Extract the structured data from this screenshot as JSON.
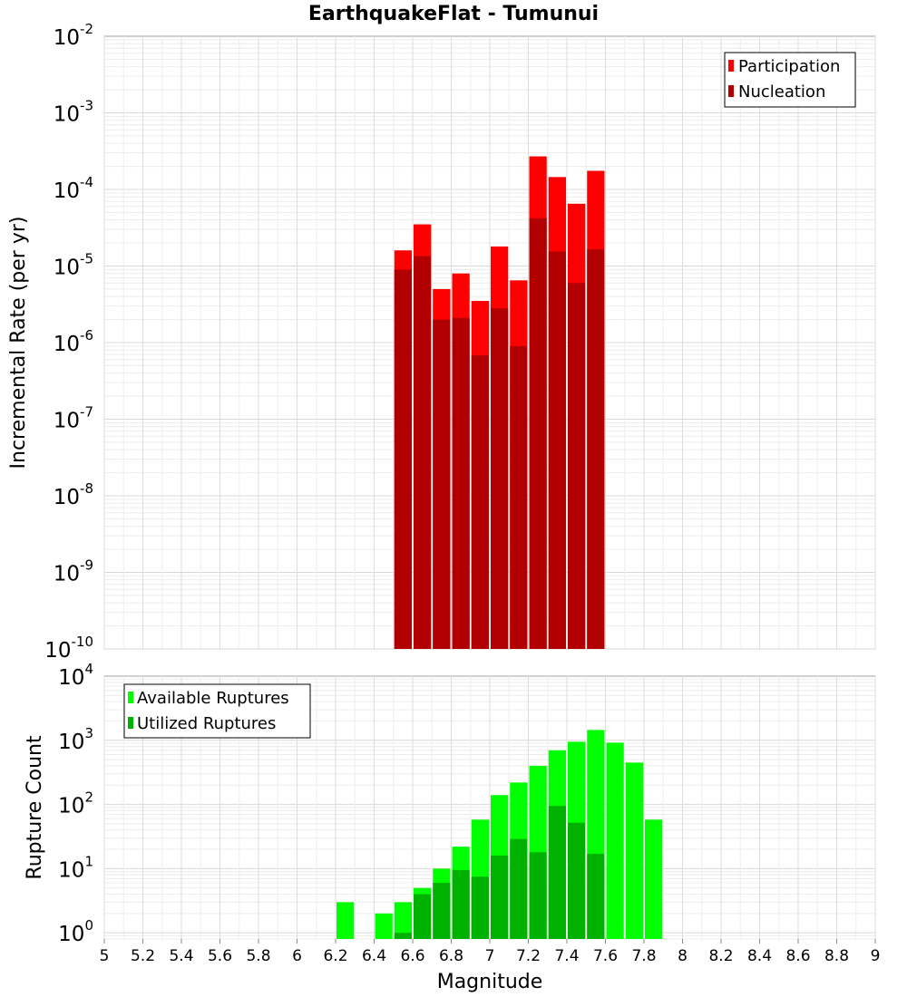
{
  "chart_data": [
    {
      "type": "bar",
      "title": "EarthquakeFlat - Tumunui",
      "xlabel": "",
      "ylabel": "Incremental Rate (per yr)",
      "y_scale": "log",
      "ylim": [
        1e-10,
        0.01
      ],
      "xlim": [
        5,
        9
      ],
      "y_ticks": [
        {
          "base": "10",
          "exp": "-2"
        },
        {
          "base": "10",
          "exp": "-3"
        },
        {
          "base": "10",
          "exp": "-4"
        },
        {
          "base": "10",
          "exp": "-5"
        },
        {
          "base": "10",
          "exp": "-6"
        },
        {
          "base": "10",
          "exp": "-7"
        },
        {
          "base": "10",
          "exp": "-8"
        },
        {
          "base": "10",
          "exp": "-9"
        },
        {
          "base": "10",
          "exp": "-10"
        }
      ],
      "legend_position": "top-right",
      "grid": true,
      "x": [
        6.55,
        6.65,
        6.75,
        6.85,
        6.95,
        7.05,
        7.15,
        7.25,
        7.35,
        7.45,
        7.55
      ],
      "series": [
        {
          "name": "Participation",
          "color": "#ff0000",
          "values": [
            1.6e-05,
            3.5e-05,
            5e-06,
            8e-06,
            3.5e-06,
            1.8e-05,
            6.5e-06,
            0.00027,
            0.000145,
            6.5e-05,
            0.000175
          ]
        },
        {
          "name": "Nucleation",
          "color": "#b20000",
          "values": [
            9e-06,
            1.35e-05,
            2e-06,
            2.1e-06,
            6.8e-07,
            2.8e-06,
            9e-07,
            4.2e-05,
            1.55e-05,
            6e-06,
            1.65e-05
          ]
        }
      ]
    },
    {
      "type": "bar",
      "title": "",
      "xlabel": "Magnitude",
      "ylabel": "Rupture Count",
      "y_scale": "log",
      "ylim": [
        0.8,
        10000
      ],
      "xlim": [
        5,
        9
      ],
      "x_tick_labels": [
        "5",
        "5.2",
        "5.4",
        "5.6",
        "5.8",
        "6",
        "6.2",
        "6.4",
        "6.6",
        "6.8",
        "7",
        "7.2",
        "7.4",
        "7.6",
        "7.8",
        "8",
        "8.2",
        "8.4",
        "8.6",
        "8.8",
        "9"
      ],
      "y_ticks": [
        {
          "base": "10",
          "exp": "4"
        },
        {
          "base": "10",
          "exp": "3"
        },
        {
          "base": "10",
          "exp": "2"
        },
        {
          "base": "10",
          "exp": "1"
        },
        {
          "base": "10",
          "exp": "0"
        }
      ],
      "legend_position": "top-left",
      "grid": true,
      "x": [
        6.25,
        6.45,
        6.55,
        6.65,
        6.75,
        6.85,
        6.95,
        7.05,
        7.15,
        7.25,
        7.35,
        7.45,
        7.55,
        7.65,
        7.75,
        7.85
      ],
      "series": [
        {
          "name": "Available Ruptures",
          "color": "#00ff00",
          "values": [
            3,
            2,
            3,
            5,
            10,
            22,
            58,
            140,
            220,
            400,
            700,
            950,
            1450,
            920,
            450,
            58
          ]
        },
        {
          "name": "Utilized Ruptures",
          "color": "#00b200",
          "values": [
            0,
            0,
            1,
            4,
            6,
            9.5,
            7.5,
            16,
            29,
            18,
            95,
            52,
            17,
            0,
            0,
            0
          ]
        }
      ]
    }
  ]
}
